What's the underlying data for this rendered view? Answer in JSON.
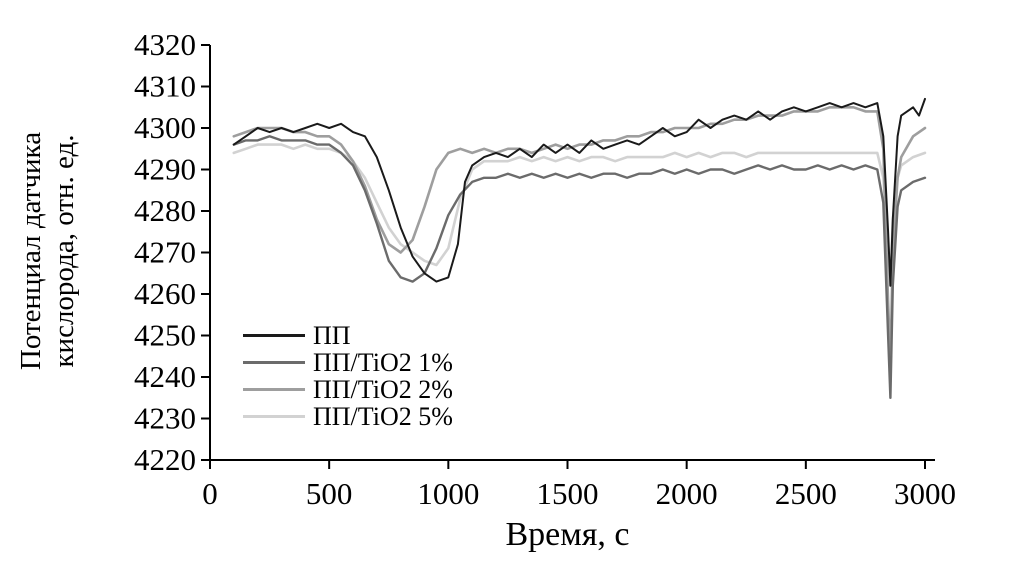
{
  "chart_data": {
    "type": "line",
    "title": "",
    "xlabel": "Время, с",
    "ylabel_lines": [
      "Потенциал датчика",
      "кислорода, отн. ед."
    ],
    "xlim": [
      0,
      3000
    ],
    "ylim": [
      4220,
      4320
    ],
    "x_ticks": [
      0,
      500,
      1000,
      1500,
      2000,
      2500,
      3000
    ],
    "y_ticks": [
      4220,
      4230,
      4240,
      4250,
      4260,
      4270,
      4280,
      4290,
      4300,
      4310,
      4320
    ],
    "grid": false,
    "legend_position": "inside-bottom-left",
    "axis_color": "#000000",
    "series": [
      {
        "name": "ПП",
        "color": "#1a1a1a",
        "width": 2,
        "points": [
          [
            100,
            4296
          ],
          [
            150,
            4298
          ],
          [
            200,
            4300
          ],
          [
            250,
            4299
          ],
          [
            300,
            4300
          ],
          [
            350,
            4299
          ],
          [
            400,
            4300
          ],
          [
            450,
            4301
          ],
          [
            500,
            4300
          ],
          [
            550,
            4301
          ],
          [
            600,
            4299
          ],
          [
            650,
            4298
          ],
          [
            700,
            4293
          ],
          [
            750,
            4285
          ],
          [
            800,
            4276
          ],
          [
            850,
            4269
          ],
          [
            900,
            4265
          ],
          [
            950,
            4263
          ],
          [
            1000,
            4264
          ],
          [
            1040,
            4272
          ],
          [
            1070,
            4287
          ],
          [
            1100,
            4291
          ],
          [
            1150,
            4293
          ],
          [
            1200,
            4294
          ],
          [
            1250,
            4293
          ],
          [
            1300,
            4295
          ],
          [
            1350,
            4293
          ],
          [
            1400,
            4296
          ],
          [
            1450,
            4294
          ],
          [
            1500,
            4296
          ],
          [
            1550,
            4294
          ],
          [
            1600,
            4297
          ],
          [
            1650,
            4295
          ],
          [
            1700,
            4296
          ],
          [
            1750,
            4297
          ],
          [
            1800,
            4296
          ],
          [
            1850,
            4298
          ],
          [
            1900,
            4300
          ],
          [
            1950,
            4298
          ],
          [
            2000,
            4299
          ],
          [
            2050,
            4302
          ],
          [
            2100,
            4300
          ],
          [
            2150,
            4302
          ],
          [
            2200,
            4303
          ],
          [
            2250,
            4302
          ],
          [
            2300,
            4304
          ],
          [
            2350,
            4302
          ],
          [
            2400,
            4304
          ],
          [
            2450,
            4305
          ],
          [
            2500,
            4304
          ],
          [
            2550,
            4305
          ],
          [
            2600,
            4306
          ],
          [
            2650,
            4305
          ],
          [
            2700,
            4306
          ],
          [
            2750,
            4305
          ],
          [
            2800,
            4306
          ],
          [
            2825,
            4298
          ],
          [
            2845,
            4275
          ],
          [
            2855,
            4262
          ],
          [
            2865,
            4278
          ],
          [
            2885,
            4298
          ],
          [
            2900,
            4303
          ],
          [
            2950,
            4305
          ],
          [
            2975,
            4303
          ],
          [
            3000,
            4307
          ]
        ]
      },
      {
        "name": "ПП/TiO2 1%",
        "color": "#6b6b6b",
        "width": 2.4,
        "points": [
          [
            100,
            4296
          ],
          [
            150,
            4297
          ],
          [
            200,
            4297
          ],
          [
            250,
            4298
          ],
          [
            300,
            4297
          ],
          [
            350,
            4297
          ],
          [
            400,
            4297
          ],
          [
            450,
            4296
          ],
          [
            500,
            4296
          ],
          [
            550,
            4294
          ],
          [
            600,
            4291
          ],
          [
            650,
            4285
          ],
          [
            700,
            4277
          ],
          [
            750,
            4268
          ],
          [
            800,
            4264
          ],
          [
            850,
            4263
          ],
          [
            900,
            4265
          ],
          [
            950,
            4271
          ],
          [
            1000,
            4279
          ],
          [
            1050,
            4284
          ],
          [
            1100,
            4287
          ],
          [
            1150,
            4288
          ],
          [
            1200,
            4288
          ],
          [
            1250,
            4289
          ],
          [
            1300,
            4288
          ],
          [
            1350,
            4289
          ],
          [
            1400,
            4288
          ],
          [
            1450,
            4289
          ],
          [
            1500,
            4288
          ],
          [
            1550,
            4289
          ],
          [
            1600,
            4288
          ],
          [
            1650,
            4289
          ],
          [
            1700,
            4289
          ],
          [
            1750,
            4288
          ],
          [
            1800,
            4289
          ],
          [
            1850,
            4289
          ],
          [
            1900,
            4290
          ],
          [
            1950,
            4289
          ],
          [
            2000,
            4290
          ],
          [
            2050,
            4289
          ],
          [
            2100,
            4290
          ],
          [
            2150,
            4290
          ],
          [
            2200,
            4289
          ],
          [
            2250,
            4290
          ],
          [
            2300,
            4291
          ],
          [
            2350,
            4290
          ],
          [
            2400,
            4291
          ],
          [
            2450,
            4290
          ],
          [
            2500,
            4290
          ],
          [
            2550,
            4291
          ],
          [
            2600,
            4290
          ],
          [
            2650,
            4291
          ],
          [
            2700,
            4290
          ],
          [
            2750,
            4291
          ],
          [
            2800,
            4290
          ],
          [
            2825,
            4282
          ],
          [
            2845,
            4250
          ],
          [
            2855,
            4235
          ],
          [
            2865,
            4262
          ],
          [
            2885,
            4281
          ],
          [
            2900,
            4285
          ],
          [
            2950,
            4287
          ],
          [
            3000,
            4288
          ]
        ]
      },
      {
        "name": "ПП/TiO2 2%",
        "color": "#9e9e9e",
        "width": 2.6,
        "points": [
          [
            100,
            4298
          ],
          [
            150,
            4299
          ],
          [
            200,
            4300
          ],
          [
            250,
            4300
          ],
          [
            300,
            4300
          ],
          [
            350,
            4299
          ],
          [
            400,
            4299
          ],
          [
            450,
            4298
          ],
          [
            500,
            4298
          ],
          [
            550,
            4296
          ],
          [
            600,
            4292
          ],
          [
            650,
            4286
          ],
          [
            700,
            4278
          ],
          [
            750,
            4272
          ],
          [
            800,
            4270
          ],
          [
            850,
            4273
          ],
          [
            900,
            4281
          ],
          [
            950,
            4290
          ],
          [
            1000,
            4294
          ],
          [
            1050,
            4295
          ],
          [
            1100,
            4294
          ],
          [
            1150,
            4295
          ],
          [
            1200,
            4294
          ],
          [
            1250,
            4295
          ],
          [
            1300,
            4295
          ],
          [
            1350,
            4294
          ],
          [
            1400,
            4295
          ],
          [
            1450,
            4296
          ],
          [
            1500,
            4295
          ],
          [
            1550,
            4296
          ],
          [
            1600,
            4296
          ],
          [
            1650,
            4297
          ],
          [
            1700,
            4297
          ],
          [
            1750,
            4298
          ],
          [
            1800,
            4298
          ],
          [
            1850,
            4299
          ],
          [
            1900,
            4299
          ],
          [
            1950,
            4300
          ],
          [
            2000,
            4300
          ],
          [
            2050,
            4300
          ],
          [
            2100,
            4301
          ],
          [
            2150,
            4301
          ],
          [
            2200,
            4302
          ],
          [
            2250,
            4302
          ],
          [
            2300,
            4303
          ],
          [
            2350,
            4303
          ],
          [
            2400,
            4303
          ],
          [
            2450,
            4304
          ],
          [
            2500,
            4304
          ],
          [
            2550,
            4304
          ],
          [
            2600,
            4305
          ],
          [
            2650,
            4305
          ],
          [
            2700,
            4305
          ],
          [
            2750,
            4304
          ],
          [
            2800,
            4304
          ],
          [
            2825,
            4295
          ],
          [
            2845,
            4258
          ],
          [
            2855,
            4243
          ],
          [
            2865,
            4270
          ],
          [
            2885,
            4288
          ],
          [
            2900,
            4293
          ],
          [
            2950,
            4298
          ],
          [
            3000,
            4300
          ]
        ]
      },
      {
        "name": "ПП/TiO2 5%",
        "color": "#d2d2d2",
        "width": 2.6,
        "points": [
          [
            100,
            4294
          ],
          [
            150,
            4295
          ],
          [
            200,
            4296
          ],
          [
            250,
            4296
          ],
          [
            300,
            4296
          ],
          [
            350,
            4295
          ],
          [
            400,
            4296
          ],
          [
            450,
            4295
          ],
          [
            500,
            4295
          ],
          [
            550,
            4294
          ],
          [
            600,
            4292
          ],
          [
            650,
            4288
          ],
          [
            700,
            4282
          ],
          [
            750,
            4276
          ],
          [
            800,
            4272
          ],
          [
            850,
            4270
          ],
          [
            900,
            4268
          ],
          [
            950,
            4267
          ],
          [
            1000,
            4271
          ],
          [
            1050,
            4283
          ],
          [
            1100,
            4290
          ],
          [
            1150,
            4292
          ],
          [
            1200,
            4292
          ],
          [
            1250,
            4292
          ],
          [
            1300,
            4293
          ],
          [
            1350,
            4292
          ],
          [
            1400,
            4293
          ],
          [
            1450,
            4292
          ],
          [
            1500,
            4293
          ],
          [
            1550,
            4292
          ],
          [
            1600,
            4293
          ],
          [
            1650,
            4293
          ],
          [
            1700,
            4292
          ],
          [
            1750,
            4293
          ],
          [
            1800,
            4293
          ],
          [
            1850,
            4293
          ],
          [
            1900,
            4293
          ],
          [
            1950,
            4294
          ],
          [
            2000,
            4293
          ],
          [
            2050,
            4294
          ],
          [
            2100,
            4293
          ],
          [
            2150,
            4294
          ],
          [
            2200,
            4294
          ],
          [
            2250,
            4293
          ],
          [
            2300,
            4294
          ],
          [
            2350,
            4294
          ],
          [
            2400,
            4294
          ],
          [
            2450,
            4294
          ],
          [
            2500,
            4294
          ],
          [
            2550,
            4294
          ],
          [
            2600,
            4294
          ],
          [
            2650,
            4294
          ],
          [
            2700,
            4294
          ],
          [
            2750,
            4294
          ],
          [
            2800,
            4294
          ],
          [
            2825,
            4288
          ],
          [
            2845,
            4272
          ],
          [
            2855,
            4262
          ],
          [
            2865,
            4278
          ],
          [
            2885,
            4288
          ],
          [
            2900,
            4291
          ],
          [
            2950,
            4293
          ],
          [
            3000,
            4294
          ]
        ]
      }
    ]
  }
}
